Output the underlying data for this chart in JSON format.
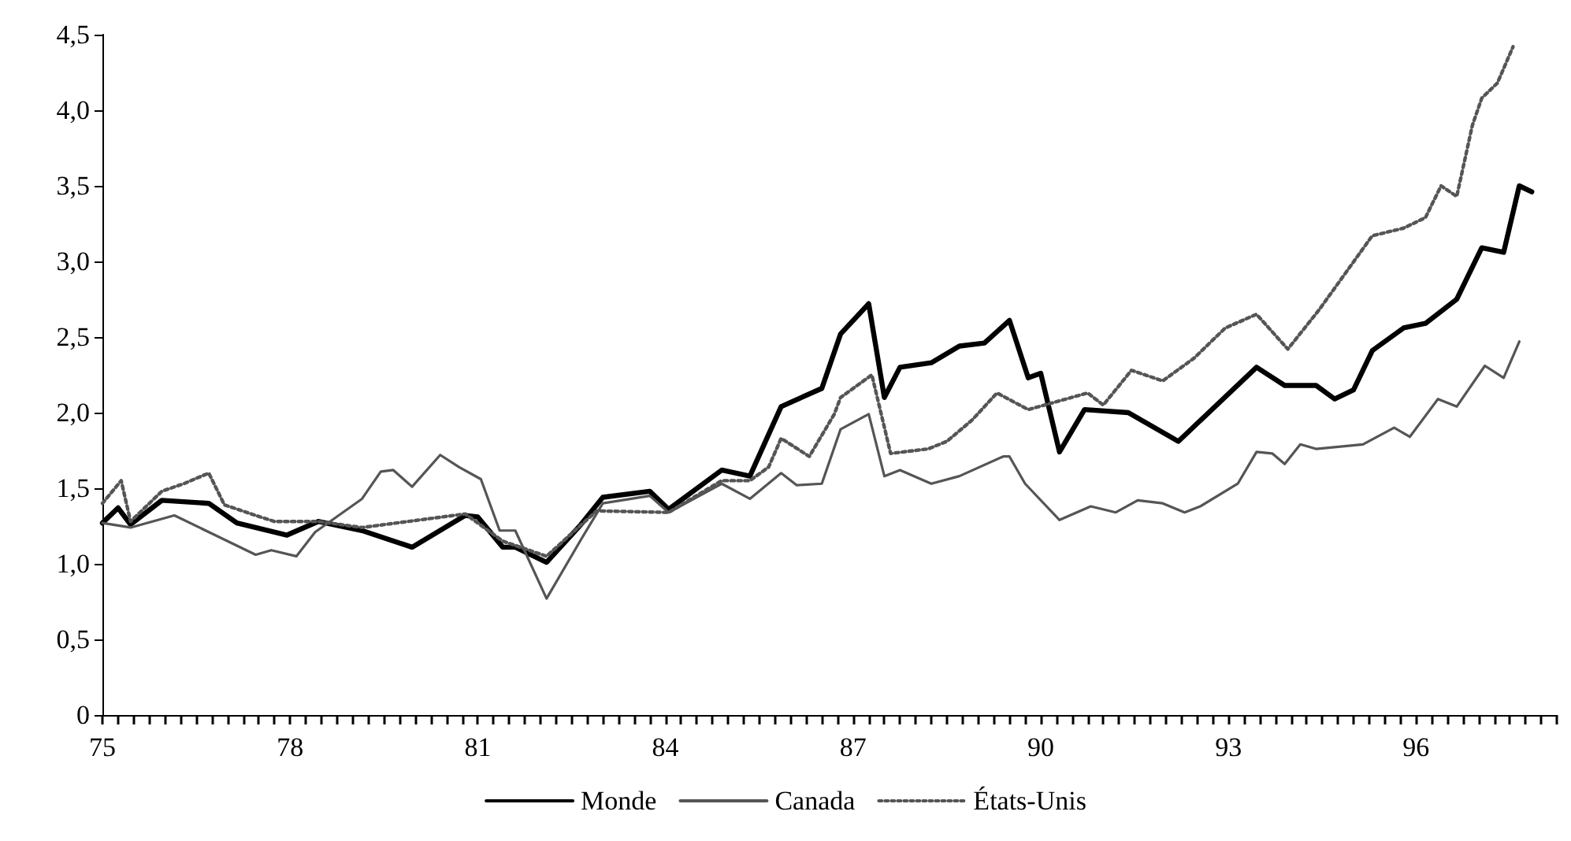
{
  "chart_data": {
    "type": "line",
    "legend": "bottom",
    "grid": false,
    "marker": "none",
    "xlim": [
      75,
      98.25
    ],
    "xticks": [
      75,
      78,
      81,
      84,
      87,
      90,
      93,
      96
    ],
    "ylim": [
      0,
      4.5
    ],
    "yticks": [
      0,
      {
        "value": 0.5,
        "label": "0,5"
      },
      {
        "value": 1,
        "label": "1,0"
      },
      {
        "value": 1.5,
        "label": "1,5"
      },
      {
        "value": 2,
        "label": "2,0"
      },
      {
        "value": 2.5,
        "label": "2,5"
      },
      {
        "value": 3,
        "label": "3,0"
      },
      {
        "value": 3.5,
        "label": "3,5"
      },
      {
        "value": 4,
        "label": "4,0"
      },
      {
        "value": 4.5,
        "label": "4,5"
      }
    ],
    "series": [
      {
        "name": "Monde",
        "color": "#000000",
        "line_style": "solid",
        "x": [
          75,
          75.25,
          75.45,
          75.95,
          76.7,
          77.15,
          77.95,
          78.45,
          79.15,
          79.95,
          80.8,
          81,
          81.4,
          81.6,
          82.1,
          82.65,
          83,
          83.75,
          84.05,
          84.9,
          85.35,
          85.85,
          86.5,
          86.8,
          87.25,
          87.5,
          87.75,
          88.25,
          88.7,
          89.1,
          89.5,
          89.8,
          90,
          90.3,
          90.7,
          91.4,
          92.2,
          93.45,
          93.9,
          94.4,
          94.7,
          95,
          95.3,
          95.8,
          96.15,
          96.65,
          97.05,
          97.4,
          97.65,
          97.85
        ],
        "values": [
          1.27,
          1.37,
          1.26,
          1.42,
          1.4,
          1.27,
          1.19,
          1.28,
          1.22,
          1.11,
          1.32,
          1.31,
          1.11,
          1.11,
          1.01,
          1.26,
          1.44,
          1.48,
          1.36,
          1.62,
          1.58,
          2.04,
          2.16,
          2.52,
          2.72,
          2.1,
          2.3,
          2.33,
          2.44,
          2.46,
          2.61,
          2.23,
          2.26,
          1.74,
          2.02,
          2,
          1.81,
          2.3,
          2.18,
          2.18,
          2.09,
          2.15,
          2.41,
          2.56,
          2.59,
          2.75,
          3.09,
          3.06,
          3.5,
          3.46
        ]
      },
      {
        "name": "Canada",
        "color": "#555555",
        "line_style": "solid",
        "x": [
          75,
          75.45,
          76.15,
          76.8,
          77.45,
          77.7,
          78.1,
          78.4,
          79.15,
          79.45,
          79.65,
          79.95,
          80.4,
          80.7,
          81.05,
          81.35,
          81.6,
          82.1,
          82.65,
          83,
          83.75,
          84.05,
          84.9,
          85.35,
          85.85,
          86.1,
          86.5,
          86.8,
          87.25,
          87.5,
          87.75,
          88.25,
          88.7,
          89.4,
          89.5,
          89.75,
          90.3,
          90.8,
          91.2,
          91.55,
          91.95,
          92.3,
          92.55,
          93.15,
          93.45,
          93.7,
          93.9,
          94.15,
          94.4,
          95.15,
          95.65,
          95.9,
          96.35,
          96.65,
          97.1,
          97.4,
          97.65
        ],
        "values": [
          1.27,
          1.24,
          1.32,
          1.19,
          1.06,
          1.09,
          1.05,
          1.21,
          1.43,
          1.61,
          1.62,
          1.51,
          1.72,
          1.64,
          1.56,
          1.22,
          1.22,
          0.77,
          1.16,
          1.4,
          1.45,
          1.34,
          1.53,
          1.43,
          1.6,
          1.52,
          1.53,
          1.89,
          1.99,
          1.58,
          1.62,
          1.53,
          1.58,
          1.71,
          1.71,
          1.53,
          1.29,
          1.38,
          1.34,
          1.42,
          1.4,
          1.34,
          1.38,
          1.53,
          1.74,
          1.73,
          1.66,
          1.79,
          1.76,
          1.79,
          1.9,
          1.84,
          2.09,
          2.04,
          2.31,
          2.23,
          2.47
        ]
      },
      {
        "name": "États-Unis",
        "color": "#555555",
        "line_style": "dotted",
        "x": [
          75,
          75.3,
          75.45,
          75.95,
          76.3,
          76.7,
          76.95,
          77.45,
          77.75,
          78.45,
          79.15,
          80.8,
          81.4,
          82.1,
          82.9,
          84.05,
          84.9,
          85.35,
          85.65,
          85.85,
          86.3,
          86.7,
          86.8,
          87.3,
          87.6,
          88.2,
          88.5,
          88.9,
          89.3,
          89.8,
          90.75,
          91,
          91.45,
          91.95,
          92.45,
          92.95,
          93.45,
          93.95,
          94.45,
          95.3,
          95.8,
          96.15,
          96.4,
          96.65,
          96.9,
          97.05,
          97.3,
          97.55
        ],
        "values": [
          1.4,
          1.55,
          1.28,
          1.48,
          1.53,
          1.6,
          1.39,
          1.32,
          1.28,
          1.28,
          1.24,
          1.33,
          1.15,
          1.05,
          1.35,
          1.34,
          1.55,
          1.55,
          1.64,
          1.83,
          1.71,
          1.99,
          2.1,
          2.25,
          1.73,
          1.76,
          1.81,
          1.95,
          2.13,
          2.02,
          2.13,
          2.05,
          2.28,
          2.21,
          2.36,
          2.56,
          2.65,
          2.42,
          2.68,
          3.17,
          3.22,
          3.29,
          3.5,
          3.43,
          3.9,
          4.08,
          4.18,
          4.42
        ]
      }
    ]
  }
}
